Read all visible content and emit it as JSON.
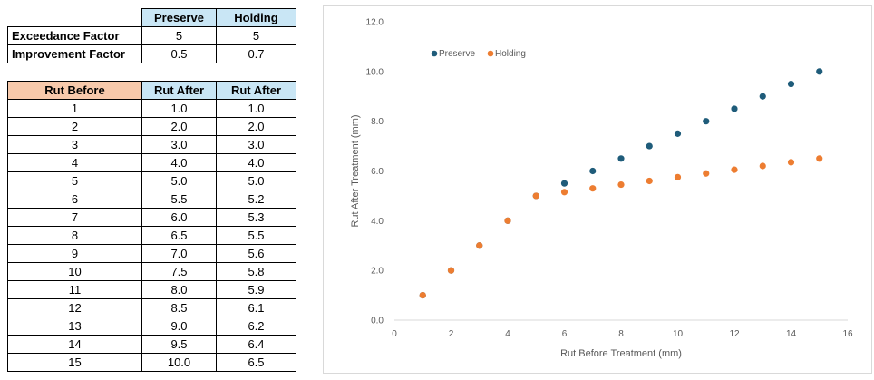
{
  "factors": {
    "headers": [
      "Preserve",
      "Holding"
    ],
    "rows": [
      {
        "label": "Exceedance Factor",
        "values": [
          "5",
          "5"
        ]
      },
      {
        "label": "Improvement Factor",
        "values": [
          "0.5",
          "0.7"
        ]
      }
    ]
  },
  "rut_table": {
    "headers": [
      "Rut Before",
      "Rut After",
      "Rut After"
    ],
    "rows": [
      [
        "1",
        "1.0",
        "1.0"
      ],
      [
        "2",
        "2.0",
        "2.0"
      ],
      [
        "3",
        "3.0",
        "3.0"
      ],
      [
        "4",
        "4.0",
        "4.0"
      ],
      [
        "5",
        "5.0",
        "5.0"
      ],
      [
        "6",
        "5.5",
        "5.2"
      ],
      [
        "7",
        "6.0",
        "5.3"
      ],
      [
        "8",
        "6.5",
        "5.5"
      ],
      [
        "9",
        "7.0",
        "5.6"
      ],
      [
        "10",
        "7.5",
        "5.8"
      ],
      [
        "11",
        "8.0",
        "5.9"
      ],
      [
        "12",
        "8.5",
        "6.1"
      ],
      [
        "13",
        "9.0",
        "6.2"
      ],
      [
        "14",
        "9.5",
        "6.4"
      ],
      [
        "15",
        "10.0",
        "6.5"
      ]
    ]
  },
  "chart_data": {
    "type": "scatter",
    "title": "",
    "xlabel": "Rut Before Treatment (mm)",
    "ylabel": "Rut After Treatment (mm)",
    "xlim": [
      0,
      16
    ],
    "ylim": [
      0,
      12
    ],
    "xticks": [
      "0",
      "2",
      "4",
      "6",
      "8",
      "10",
      "12",
      "14",
      "16"
    ],
    "yticks": [
      "0.0",
      "2.0",
      "4.0",
      "6.0",
      "8.0",
      "10.0",
      "12.0"
    ],
    "legend_position": "top-left",
    "grid": false,
    "series": [
      {
        "name": "Preserve",
        "color": "#1f5c7a",
        "x": [
          1,
          2,
          3,
          4,
          5,
          6,
          7,
          8,
          9,
          10,
          11,
          12,
          13,
          14,
          15
        ],
        "y": [
          1.0,
          2.0,
          3.0,
          4.0,
          5.0,
          5.5,
          6.0,
          6.5,
          7.0,
          7.5,
          8.0,
          8.5,
          9.0,
          9.5,
          10.0
        ]
      },
      {
        "name": "Holding",
        "color": "#ed7d31",
        "x": [
          1,
          2,
          3,
          4,
          5,
          6,
          7,
          8,
          9,
          10,
          11,
          12,
          13,
          14,
          15
        ],
        "y": [
          1.0,
          2.0,
          3.0,
          4.0,
          5.0,
          5.15,
          5.3,
          5.45,
          5.6,
          5.75,
          5.9,
          6.05,
          6.2,
          6.35,
          6.5
        ]
      }
    ]
  }
}
